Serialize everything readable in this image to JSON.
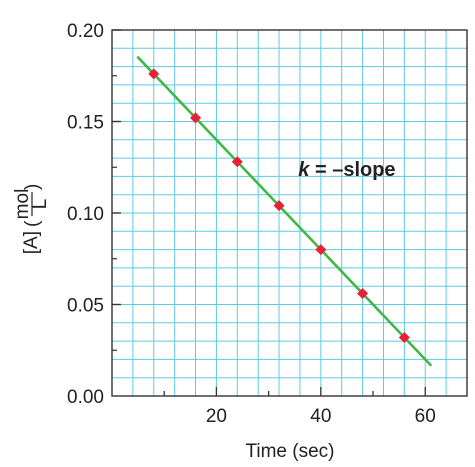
{
  "chart_data": {
    "type": "scatter",
    "title": "",
    "xlabel": "Time (sec)",
    "ylabel": {
      "main": "[A]",
      "unit_numerator": "mol",
      "unit_denominator": "L"
    },
    "xlim": [
      0,
      68
    ],
    "ylim": [
      0,
      0.2
    ],
    "x_ticks": [
      {
        "value": 20,
        "label": "20"
      },
      {
        "value": 40,
        "label": "40"
      },
      {
        "value": 60,
        "label": "60"
      }
    ],
    "y_ticks": [
      {
        "value": 0.0,
        "label": "0.00"
      },
      {
        "value": 0.05,
        "label": "0.05"
      },
      {
        "value": 0.1,
        "label": "0.10"
      },
      {
        "value": 0.15,
        "label": "0.15"
      },
      {
        "value": 0.2,
        "label": "0.20"
      }
    ],
    "grid": true,
    "grid_color": "#5ccbe6",
    "points": {
      "color": "#e8203a",
      "x": [
        8,
        16,
        24,
        32,
        40,
        48,
        56
      ],
      "y": [
        0.176,
        0.152,
        0.128,
        0.104,
        0.08,
        0.056,
        0.032
      ]
    },
    "fit_line": {
      "color": "#3fb84a",
      "x": [
        5,
        61
      ],
      "y": [
        0.185,
        0.017
      ]
    },
    "annotation": {
      "italic_part": "k",
      "rest": " = –slope",
      "x": 45,
      "y": 0.124
    }
  }
}
